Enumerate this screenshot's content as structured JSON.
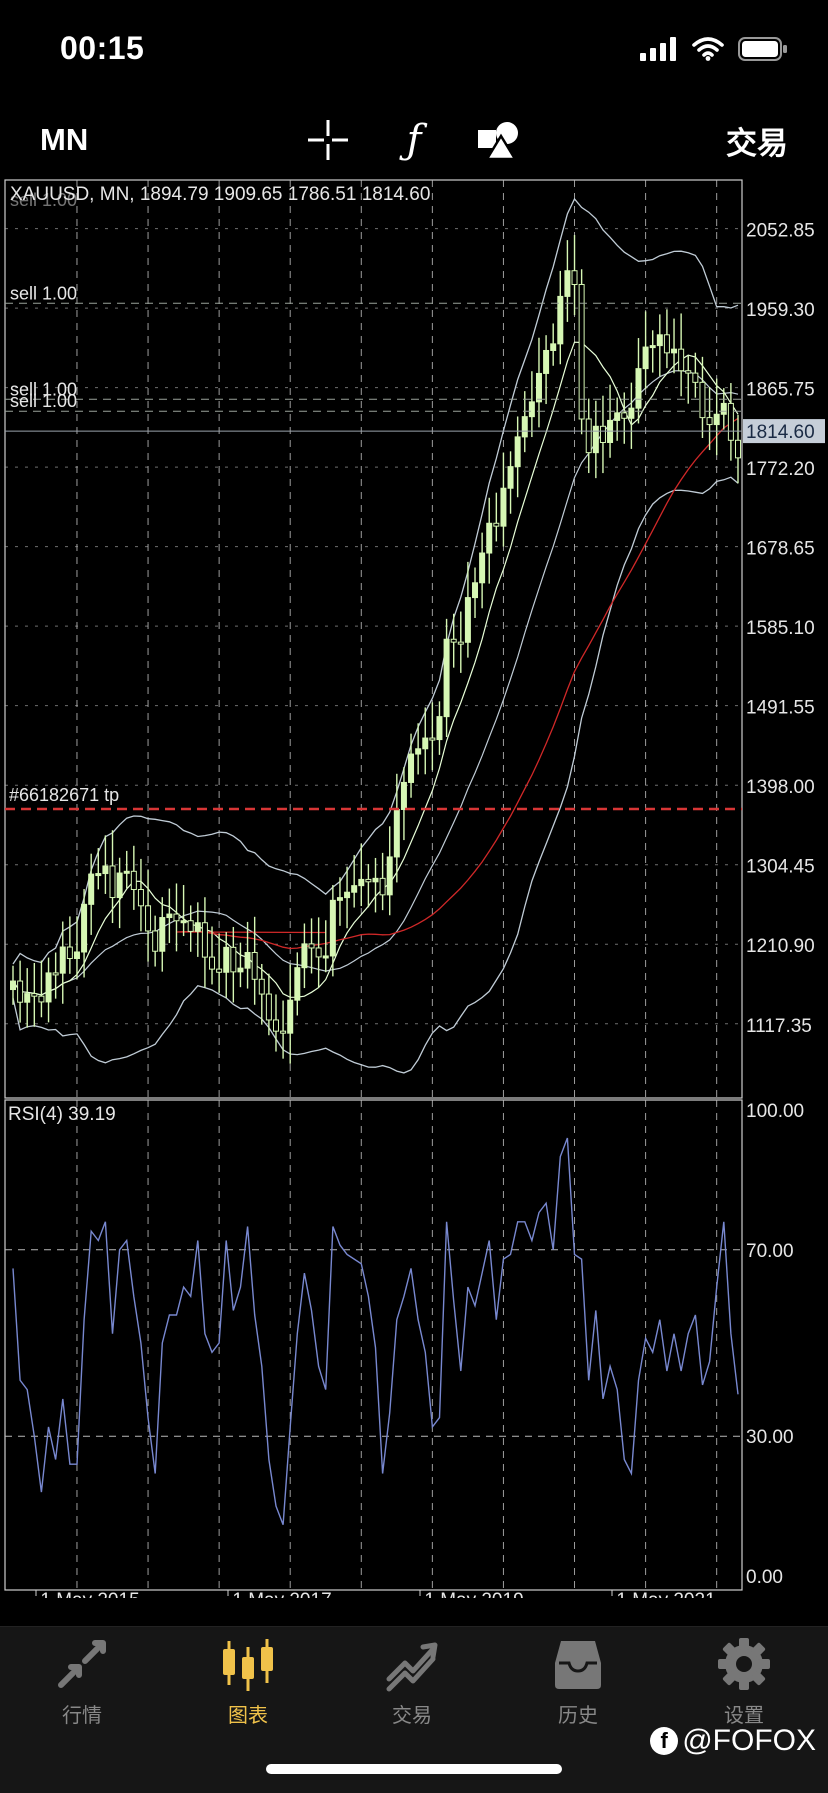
{
  "status": {
    "time": "00:15"
  },
  "toolbar": {
    "period": "MN",
    "function_glyph": "ƒ",
    "trade_label": "交易"
  },
  "chart_data": {
    "type": "candlestick",
    "symbol_line": "XAUUSD, MN, 1894.79 1909.65 1786.51 1814.60",
    "title_overlay": "sell 1.00",
    "price_axis": [
      "2052.85",
      "1959.30",
      "1865.75",
      "1772.20",
      "1678.65",
      "1585.10",
      "1491.55",
      "1398.00",
      "1304.45",
      "1210.90",
      "1117.35"
    ],
    "current_price": "1814.60",
    "ylim": [
      1030,
      2110
    ],
    "trade_lines": [
      {
        "label": "sell 1.00",
        "price": 1965
      },
      {
        "label": "sell 1.00",
        "price": 1852
      },
      {
        "label": "sell 1.00",
        "price": 1838
      }
    ],
    "tp_label": "#66182671 tp",
    "tp_price": 1370,
    "rsi": {
      "label": "RSI(4) 39.19",
      "levels": [
        "100.00",
        "70.00",
        "30.00",
        "0.00"
      ],
      "values": [
        66,
        42,
        40,
        30,
        18,
        32,
        25,
        38,
        24,
        24,
        55,
        74,
        72,
        76,
        52,
        70,
        72,
        60,
        50,
        34,
        22,
        50,
        56,
        56,
        62,
        60,
        72,
        52,
        48,
        50,
        72,
        57,
        62,
        75,
        56,
        45,
        25,
        15,
        11,
        32,
        52,
        65,
        57,
        45,
        40,
        75,
        71,
        69,
        68,
        67,
        60,
        49,
        22,
        35,
        55,
        60,
        66,
        55,
        48,
        32,
        34,
        76,
        59,
        44,
        62,
        58,
        65,
        72,
        55,
        68,
        69,
        76,
        76,
        72,
        78,
        80,
        70,
        90,
        94,
        69,
        68,
        42,
        57,
        38,
        45,
        40,
        25,
        22,
        42,
        51,
        48,
        55,
        44,
        52,
        44,
        52,
        56,
        41,
        46,
        62,
        76,
        52,
        39
      ]
    },
    "x_labels": [
      "1 May 2015",
      "1 May 2017",
      "1 May 2019",
      "1 May 2021"
    ],
    "colors": {
      "bull": "#d6f7b4",
      "bear": "#d6f7b4",
      "ma_fast": "#e8ffd8",
      "ma_slow": "#d02828",
      "bands": "#c0ccd6",
      "rsi": "#7888d0",
      "tp_line": "#d83636",
      "grid": "#b9b9b9"
    }
  },
  "tabs": [
    {
      "label": "行情",
      "icon": "quotes-icon"
    },
    {
      "label": "图表",
      "icon": "chart-icon"
    },
    {
      "label": "交易",
      "icon": "trade-icon"
    },
    {
      "label": "历史",
      "icon": "history-icon"
    },
    {
      "label": "设置",
      "icon": "settings-icon"
    }
  ],
  "watermark": {
    "f_glyph": "f",
    "text": "@FOFOX"
  }
}
